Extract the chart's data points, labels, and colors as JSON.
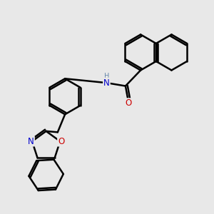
{
  "bg_color": "#e8e8e8",
  "bond_color": "#000000",
  "bond_width": 1.8,
  "N_color": "#0000cc",
  "O_color": "#cc0000",
  "H_color": "#6688aa",
  "font_size": 8.5,
  "fig_size": [
    3.0,
    3.0
  ],
  "dpi": 100,
  "xlim": [
    0,
    10
  ],
  "ylim": [
    0,
    10
  ],
  "ring_r": 0.85
}
